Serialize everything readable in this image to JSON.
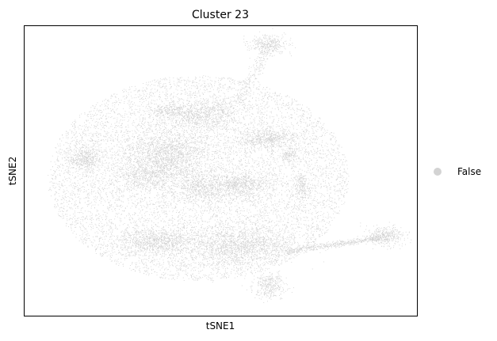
{
  "chart_data": {
    "type": "scatter",
    "title": "Cluster 23",
    "xlabel": "tSNE1",
    "ylabel": "tSNE2",
    "xticks": [],
    "yticks": [],
    "grid": false,
    "legend": {
      "placement": "right",
      "entries": [
        {
          "label": "False",
          "color": "#d3d3d3"
        }
      ]
    },
    "series": [
      {
        "name": "False",
        "color": "#d3d3d3",
        "description_free": true,
        "point_count_estimate": 40000
      }
    ]
  }
}
